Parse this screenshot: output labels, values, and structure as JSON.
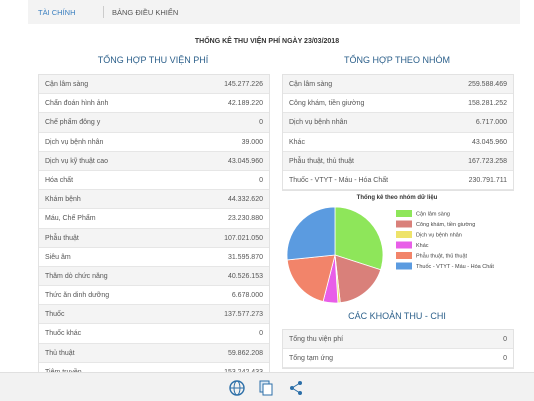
{
  "breadcrumb": {
    "items": [
      "TÀI CHÍNH",
      "BẢNG ĐIỀU KHIỂN"
    ]
  },
  "header": {
    "title": "THỐNG KÊ THU VIỆN PHÍ NGÀY 23/03/2018"
  },
  "fee_summary": {
    "title": "TỔNG HỢP THU VIỆN PHÍ",
    "rows": [
      [
        "Cận lâm sàng",
        "145.277.226"
      ],
      [
        "Chẩn đoán hình ảnh",
        "42.189.220"
      ],
      [
        "Chế phẩm đông y",
        "0"
      ],
      [
        "Dịch vụ bệnh nhân",
        "39.000"
      ],
      [
        "Dịch vụ kỹ thuật cao",
        "43.045.960"
      ],
      [
        "Hóa chất",
        "0"
      ],
      [
        "Khám bệnh",
        "44.332.620"
      ],
      [
        "Máu, Chế Phẩm",
        "23.230.880"
      ],
      [
        "Phẫu thuật",
        "107.021.050"
      ],
      [
        "Siêu âm",
        "31.595.870"
      ],
      [
        "Thăm dò chức năng",
        "40.526.153"
      ],
      [
        "Thức ăn dinh dưỡng",
        "6.678.000"
      ],
      [
        "Thuốc",
        "137.577.273"
      ],
      [
        "Thuốc khác",
        "0"
      ],
      [
        "Thủ thuật",
        "59.862.208"
      ],
      [
        "Tiêm truyền",
        "153.242.433"
      ]
    ]
  },
  "group_summary": {
    "title": "TỔNG HỢP THEO NHÓM",
    "rows": [
      [
        "Cận lâm sàng",
        "259.588.469"
      ],
      [
        "Công khám, tiền giường",
        "158.281.252"
      ],
      [
        "Dịch vụ bệnh nhân",
        "6.717.000"
      ],
      [
        "Khác",
        "43.045.960"
      ],
      [
        "Phẫu thuật, thủ thuật",
        "167.723.258"
      ],
      [
        "Thuốc - VTYT - Máu - Hóa Chất",
        "230.791.711"
      ]
    ]
  },
  "pie": {
    "title": "Thống kê theo nhóm dữ liệu",
    "labels": [
      "Cận lâm sàng",
      "Công khám, tiền giường",
      "Dịch vụ bệnh nhân",
      "Khác",
      "Phẫu thuật, thủ thuật",
      "Thuốc - VTYT - Máu - Hóa Chất"
    ],
    "values": [
      259588469,
      158281252,
      6717000,
      43045960,
      167723258,
      230791711
    ],
    "colors": [
      "#8ee65a",
      "#d9807a",
      "#eee36a",
      "#e85ee8",
      "#f2846a",
      "#5b9be0"
    ]
  },
  "income_expense": {
    "title": "CÁC KHOẢN THU - CHI",
    "rows": [
      [
        "Tổng thu viện phí",
        "0"
      ],
      [
        "Tổng tạm ứng",
        "0"
      ]
    ]
  }
}
